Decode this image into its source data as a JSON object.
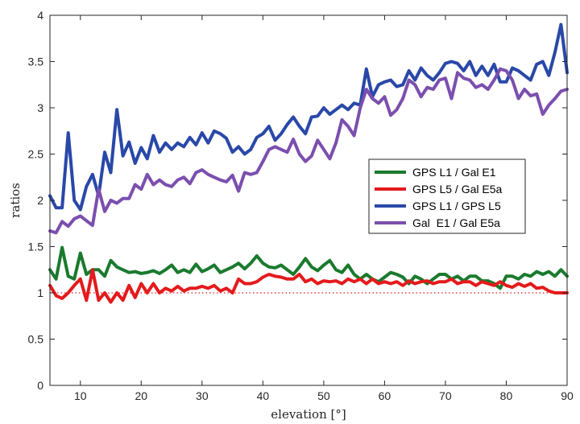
{
  "chart_data": {
    "type": "line",
    "title": "",
    "xlabel": "elevation [°]",
    "ylabel": "ratios",
    "xlim": [
      5,
      90
    ],
    "ylim": [
      0,
      4
    ],
    "xticks": [
      10,
      20,
      30,
      40,
      50,
      60,
      70,
      80,
      90
    ],
    "yticks": [
      0,
      0.5,
      1,
      1.5,
      2,
      2.5,
      3,
      3.5,
      4
    ],
    "xtick_labels": [
      "10",
      "20",
      "30",
      "40",
      "50",
      "60",
      "70",
      "80",
      "90"
    ],
    "ytick_labels": [
      "0",
      "0.5",
      "1",
      "1.5",
      "2",
      "2.5",
      "3",
      "3.5",
      "4"
    ],
    "legend_position": "center-right",
    "reference_line": {
      "y": 1,
      "style": "dotted",
      "color": "#e41a1c"
    },
    "series": [
      {
        "name": "GPS L1 / Gal E1",
        "color": "#1a7a2e",
        "x": [
          5,
          6,
          7,
          8,
          9,
          10,
          11,
          12,
          13,
          14,
          15,
          16,
          17,
          18,
          19,
          20,
          21,
          22,
          23,
          24,
          25,
          26,
          27,
          28,
          29,
          30,
          31,
          32,
          33,
          34,
          35,
          36,
          37,
          38,
          39,
          40,
          41,
          42,
          43,
          44,
          45,
          46,
          47,
          48,
          49,
          50,
          51,
          52,
          53,
          54,
          55,
          56,
          57,
          58,
          59,
          60,
          61,
          62,
          63,
          64,
          65,
          66,
          67,
          68,
          69,
          70,
          71,
          72,
          73,
          74,
          75,
          76,
          77,
          78,
          79,
          80,
          81,
          82,
          83,
          84,
          85,
          86,
          87,
          88,
          89,
          90
        ],
        "values": [
          1.25,
          1.15,
          1.49,
          1.18,
          1.15,
          1.43,
          1.2,
          1.25,
          1.25,
          1.18,
          1.35,
          1.28,
          1.25,
          1.22,
          1.23,
          1.21,
          1.22,
          1.24,
          1.21,
          1.25,
          1.3,
          1.22,
          1.25,
          1.22,
          1.31,
          1.23,
          1.26,
          1.3,
          1.22,
          1.25,
          1.28,
          1.32,
          1.26,
          1.32,
          1.4,
          1.32,
          1.28,
          1.27,
          1.3,
          1.25,
          1.2,
          1.28,
          1.37,
          1.28,
          1.24,
          1.3,
          1.35,
          1.25,
          1.22,
          1.3,
          1.2,
          1.15,
          1.2,
          1.15,
          1.12,
          1.17,
          1.22,
          1.2,
          1.17,
          1.1,
          1.18,
          1.15,
          1.1,
          1.15,
          1.2,
          1.2,
          1.15,
          1.18,
          1.13,
          1.18,
          1.18,
          1.13,
          1.13,
          1.1,
          1.05,
          1.18,
          1.18,
          1.15,
          1.2,
          1.18,
          1.23,
          1.2,
          1.23,
          1.18,
          1.25,
          1.18
        ]
      },
      {
        "name": "GPS L5 / Gal E5a",
        "color": "#e41a1c",
        "x": [
          5,
          6,
          7,
          8,
          9,
          10,
          11,
          12,
          13,
          14,
          15,
          16,
          17,
          18,
          19,
          20,
          21,
          22,
          23,
          24,
          25,
          26,
          27,
          28,
          29,
          30,
          31,
          32,
          33,
          34,
          35,
          36,
          37,
          38,
          39,
          40,
          41,
          42,
          43,
          44,
          45,
          46,
          47,
          48,
          49,
          50,
          51,
          52,
          53,
          54,
          55,
          56,
          57,
          58,
          59,
          60,
          61,
          62,
          63,
          64,
          65,
          66,
          67,
          68,
          69,
          70,
          71,
          72,
          73,
          74,
          75,
          76,
          77,
          78,
          79,
          80,
          81,
          82,
          83,
          84,
          85,
          86,
          87,
          88,
          89,
          90
        ],
        "values": [
          1.08,
          0.97,
          0.94,
          1.0,
          1.08,
          1.15,
          0.92,
          1.25,
          0.92,
          1.0,
          0.9,
          1.0,
          0.92,
          1.08,
          0.95,
          1.1,
          1.0,
          1.1,
          1.0,
          1.05,
          1.02,
          1.07,
          1.02,
          1.05,
          1.05,
          1.07,
          1.05,
          1.08,
          1.02,
          1.05,
          1.0,
          1.15,
          1.1,
          1.1,
          1.12,
          1.17,
          1.2,
          1.18,
          1.17,
          1.15,
          1.15,
          1.2,
          1.12,
          1.15,
          1.1,
          1.13,
          1.12,
          1.13,
          1.1,
          1.15,
          1.12,
          1.15,
          1.1,
          1.15,
          1.1,
          1.12,
          1.1,
          1.12,
          1.08,
          1.13,
          1.1,
          1.12,
          1.13,
          1.1,
          1.12,
          1.12,
          1.15,
          1.1,
          1.12,
          1.12,
          1.08,
          1.12,
          1.1,
          1.08,
          1.12,
          1.08,
          1.06,
          1.1,
          1.07,
          1.1,
          1.05,
          1.06,
          1.02,
          1.0,
          1.0,
          1.0
        ]
      },
      {
        "name": "GPS L1 / GPS L5",
        "color": "#2948a8",
        "x": [
          5,
          6,
          7,
          8,
          9,
          10,
          11,
          12,
          13,
          14,
          15,
          16,
          17,
          18,
          19,
          20,
          21,
          22,
          23,
          24,
          25,
          26,
          27,
          28,
          29,
          30,
          31,
          32,
          33,
          34,
          35,
          36,
          37,
          38,
          39,
          40,
          41,
          42,
          43,
          44,
          45,
          46,
          47,
          48,
          49,
          50,
          51,
          52,
          53,
          54,
          55,
          56,
          57,
          58,
          59,
          60,
          61,
          62,
          63,
          64,
          65,
          66,
          67,
          68,
          69,
          70,
          71,
          72,
          73,
          74,
          75,
          76,
          77,
          78,
          79,
          80,
          81,
          82,
          83,
          84,
          85,
          86,
          87,
          88,
          89,
          90
        ],
        "values": [
          2.05,
          1.92,
          1.92,
          2.73,
          2.0,
          1.9,
          2.15,
          2.28,
          2.05,
          2.52,
          2.3,
          2.98,
          2.48,
          2.63,
          2.4,
          2.57,
          2.45,
          2.7,
          2.52,
          2.62,
          2.55,
          2.62,
          2.58,
          2.68,
          2.6,
          2.73,
          2.62,
          2.75,
          2.72,
          2.67,
          2.52,
          2.58,
          2.5,
          2.55,
          2.68,
          2.72,
          2.8,
          2.65,
          2.72,
          2.82,
          2.9,
          2.8,
          2.72,
          2.9,
          2.91,
          3.0,
          2.93,
          2.98,
          3.03,
          2.98,
          3.05,
          3.03,
          3.42,
          3.12,
          3.25,
          3.28,
          3.3,
          3.23,
          3.25,
          3.4,
          3.3,
          3.43,
          3.35,
          3.3,
          3.38,
          3.48,
          3.5,
          3.48,
          3.4,
          3.5,
          3.35,
          3.45,
          3.35,
          3.47,
          3.28,
          3.28,
          3.43,
          3.4,
          3.35,
          3.3,
          3.47,
          3.5,
          3.35,
          3.6,
          3.9,
          3.38
        ]
      },
      {
        "name": "Gal  E1 / Gal E5a",
        "color": "#7b4fae",
        "x": [
          5,
          6,
          7,
          8,
          9,
          10,
          11,
          12,
          13,
          14,
          15,
          16,
          17,
          18,
          19,
          20,
          21,
          22,
          23,
          24,
          25,
          26,
          27,
          28,
          29,
          30,
          31,
          32,
          33,
          34,
          35,
          36,
          37,
          38,
          39,
          40,
          41,
          42,
          43,
          44,
          45,
          46,
          47,
          48,
          49,
          50,
          51,
          52,
          53,
          54,
          55,
          56,
          57,
          58,
          59,
          60,
          61,
          62,
          63,
          64,
          65,
          66,
          67,
          68,
          69,
          70,
          71,
          72,
          73,
          74,
          75,
          76,
          77,
          78,
          79,
          80,
          81,
          82,
          83,
          84,
          85,
          86,
          87,
          88,
          89,
          90
        ],
        "values": [
          1.67,
          1.65,
          1.77,
          1.72,
          1.8,
          1.83,
          1.78,
          1.73,
          2.12,
          1.88,
          2.0,
          1.97,
          2.02,
          2.02,
          2.17,
          2.12,
          2.28,
          2.17,
          2.22,
          2.17,
          2.15,
          2.22,
          2.25,
          2.18,
          2.3,
          2.33,
          2.28,
          2.25,
          2.22,
          2.2,
          2.27,
          2.1,
          2.3,
          2.28,
          2.3,
          2.42,
          2.55,
          2.58,
          2.55,
          2.52,
          2.66,
          2.5,
          2.42,
          2.48,
          2.65,
          2.55,
          2.45,
          2.62,
          2.87,
          2.8,
          2.7,
          3.0,
          3.2,
          3.1,
          3.05,
          3.12,
          2.92,
          2.98,
          3.1,
          3.3,
          3.25,
          3.12,
          3.22,
          3.2,
          3.3,
          3.32,
          3.1,
          3.38,
          3.32,
          3.3,
          3.22,
          3.25,
          3.2,
          3.3,
          3.42,
          3.4,
          3.3,
          3.1,
          3.2,
          3.13,
          3.15,
          2.93,
          3.03,
          3.1,
          3.18,
          3.2
        ]
      }
    ]
  }
}
